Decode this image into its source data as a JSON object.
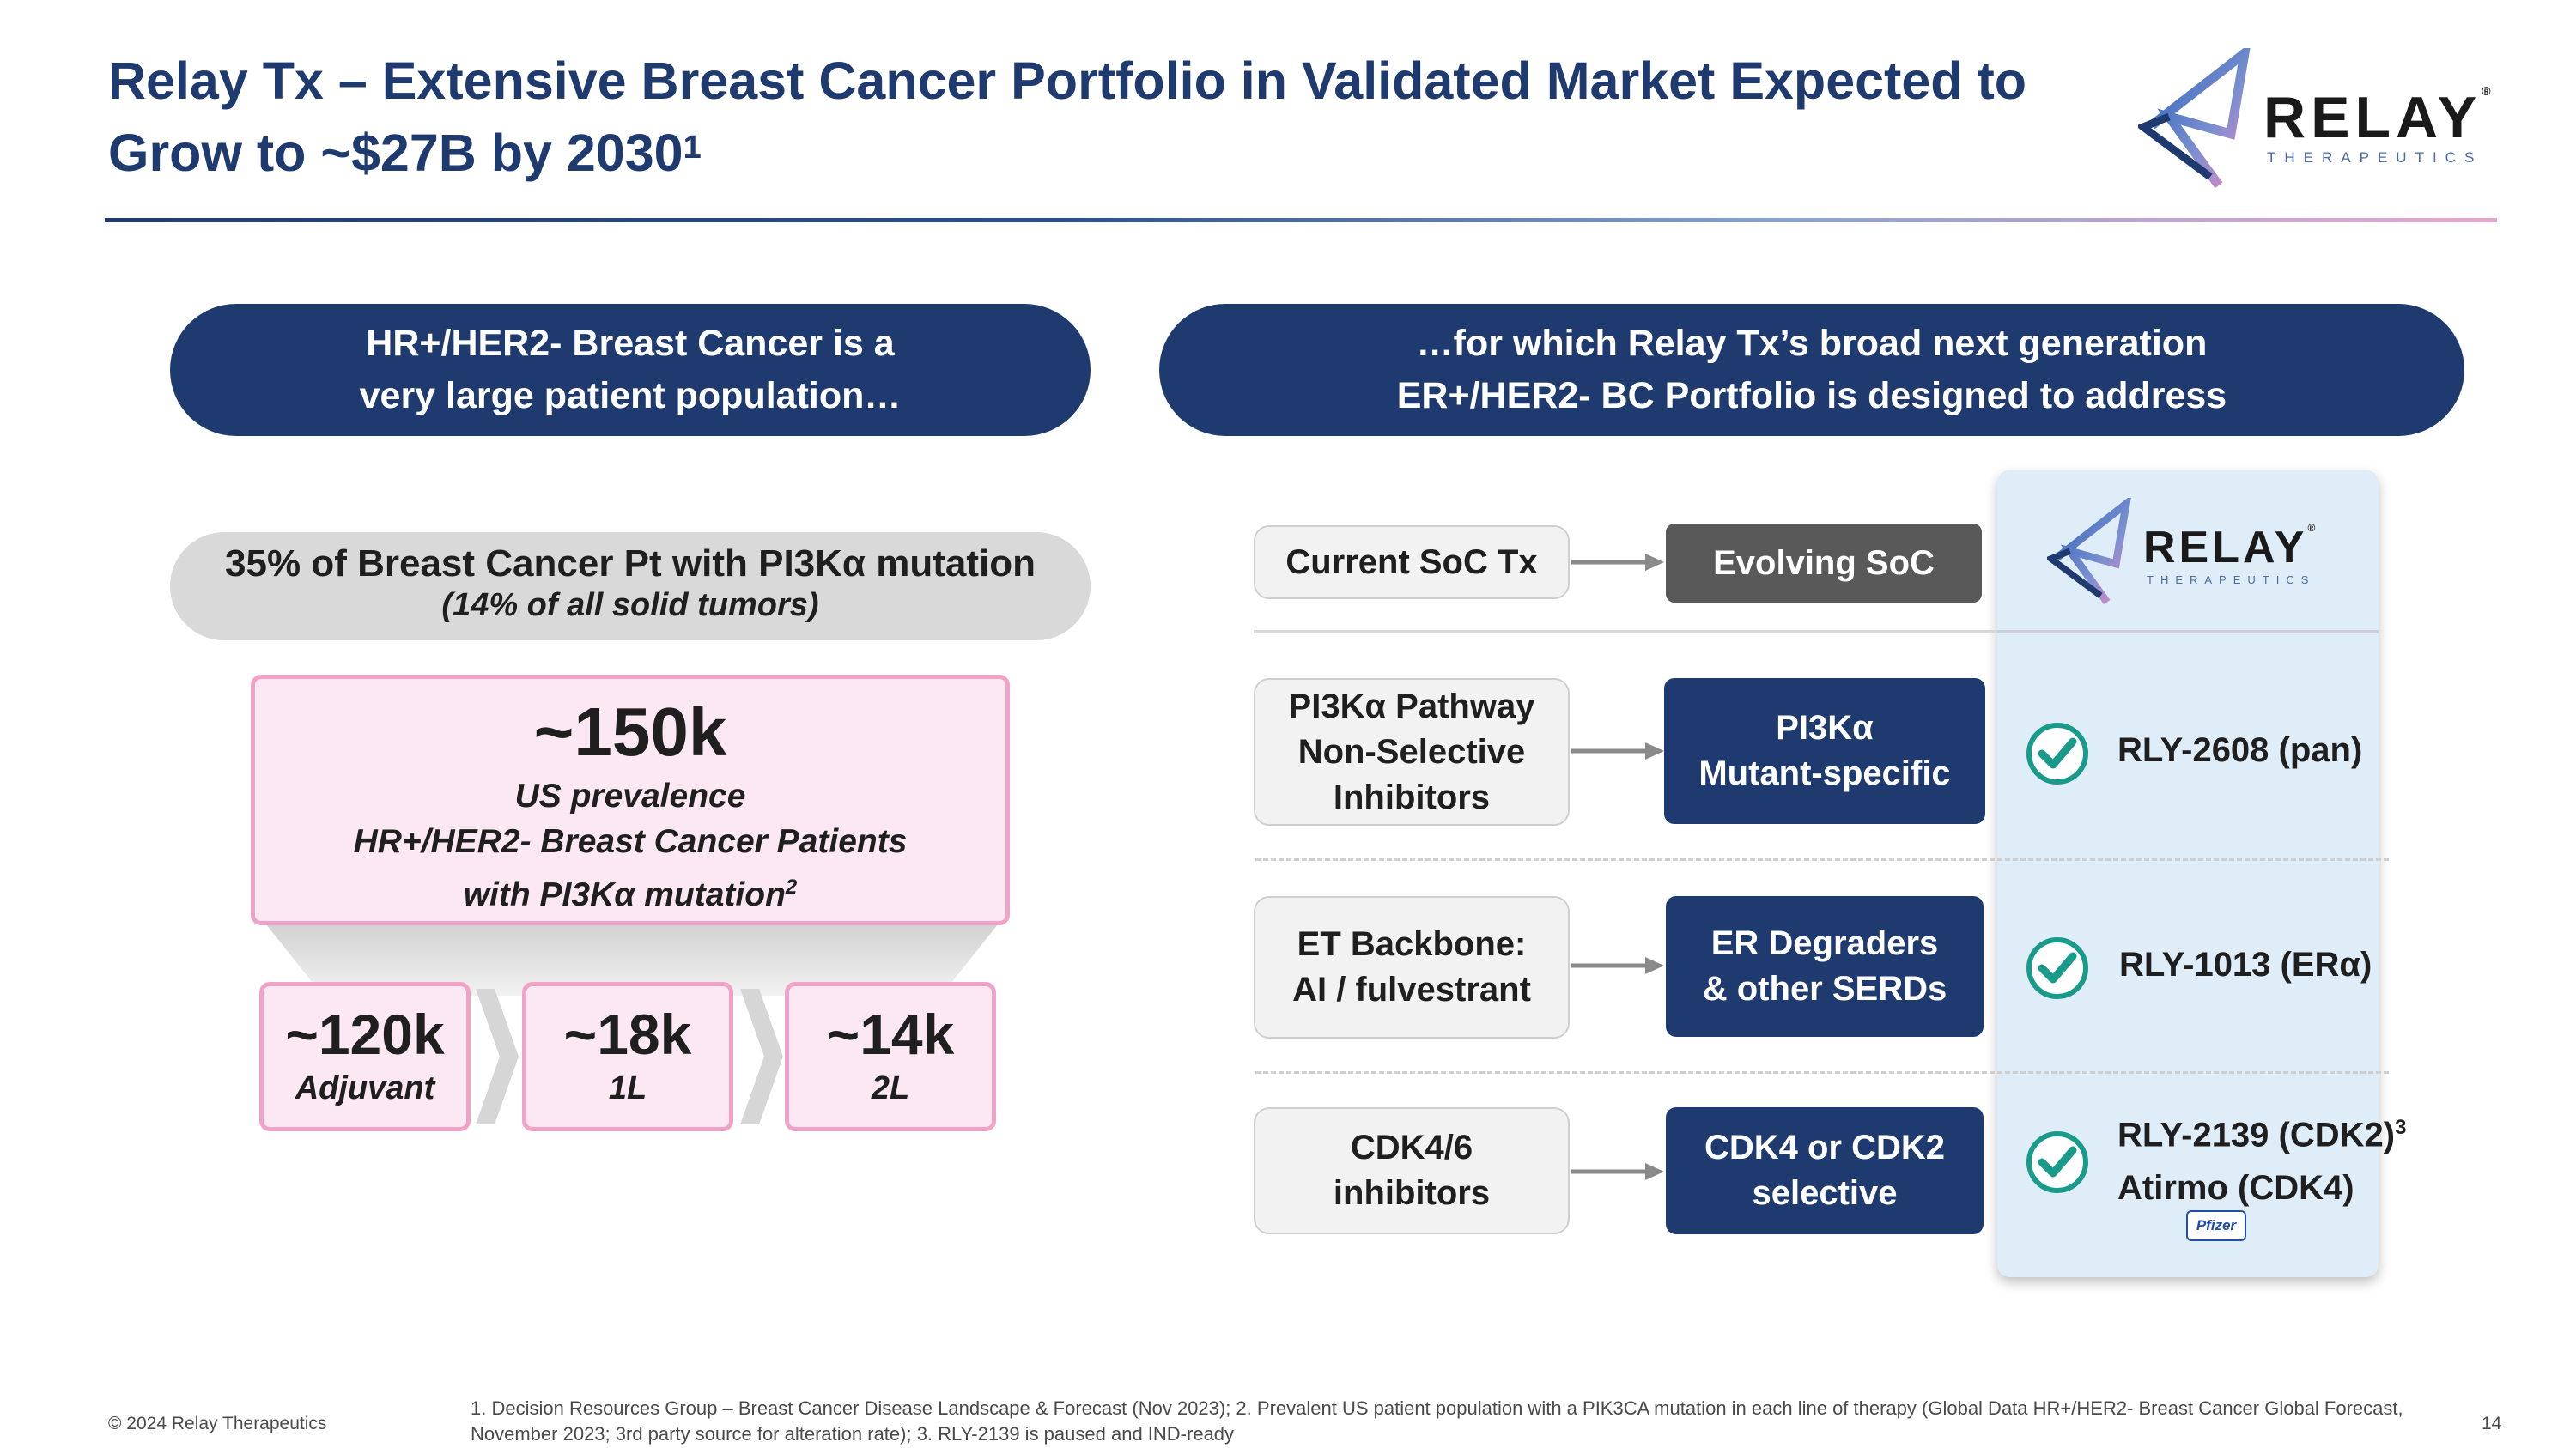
{
  "title": {
    "line1": "Relay Tx – Extensive Breast Cancer Portfolio in Validated Market Expected to",
    "line2": "Grow to ~$27B by 2030",
    "sup": "1"
  },
  "logo": {
    "brand": "RELAY",
    "reg": "®",
    "sub": "THERAPEUTICS"
  },
  "left": {
    "header_line1": "HR+/HER2- Breast Cancer is a",
    "header_line2": "very large patient population…",
    "mutation_line1": "35% of Breast Cancer Pt with PI3Kα mutation",
    "mutation_line2": "(14% of all solid tumors)",
    "prevalence_value": "~150k",
    "prevalence_line1": "US prevalence",
    "prevalence_line2": "HR+/HER2- Breast Cancer Patients",
    "prevalence_line3": "with PI3Kα mutation",
    "prevalence_sup": "2",
    "segments": [
      {
        "value": "~120k",
        "label": "Adjuvant"
      },
      {
        "value": "~18k",
        "label": "1L"
      },
      {
        "value": "~14k",
        "label": "2L"
      }
    ]
  },
  "right": {
    "header_line1": "…for which Relay Tx’s broad next generation",
    "header_line2": "ER+/HER2- BC Portfolio is designed to address",
    "current_label": "Current SoC Tx",
    "evolving_label": "Evolving SoC",
    "rows": [
      {
        "soc_lines": [
          "PI3Kα Pathway",
          "Non-Selective",
          "Inhibitors"
        ],
        "target_lines": [
          "PI3Kα",
          "Mutant-specific"
        ],
        "asset": "RLY-2608 (pan)"
      },
      {
        "soc_lines": [
          "ET Backbone:",
          "AI / fulvestrant"
        ],
        "target_lines": [
          "ER Degraders",
          "& other SERDs"
        ],
        "asset": "RLY-1013 (ERα)"
      },
      {
        "soc_lines": [
          "CDK4/6",
          "inhibitors"
        ],
        "target_lines": [
          "CDK4 or CDK2",
          "selective"
        ],
        "asset": "RLY-2139 (CDK2)",
        "asset_sup": "3",
        "asset2": "Atirmo (CDK4)",
        "partner": "Pfizer"
      }
    ]
  },
  "footer": {
    "copyright": "© 2024 Relay Therapeutics",
    "notes_line1": "1. Decision Resources Group – Breast Cancer Disease Landscape & Forecast (Nov 2023); 2. Prevalent US patient population with a PIK3CA mutation in each line of therapy (Global Data HR+/HER2- Breast Cancer Global Forecast,",
    "notes_line2": "November 2023; 3rd party source for alteration rate); 3. RLY-2139 is paused and IND-ready",
    "page_number": "14"
  },
  "colors": {
    "navy": "#1f3a6e",
    "pink_border": "#f0a3c6",
    "pink_fill": "#fce8f2",
    "panel": "#deedf8",
    "check": "#1a9a8a"
  }
}
